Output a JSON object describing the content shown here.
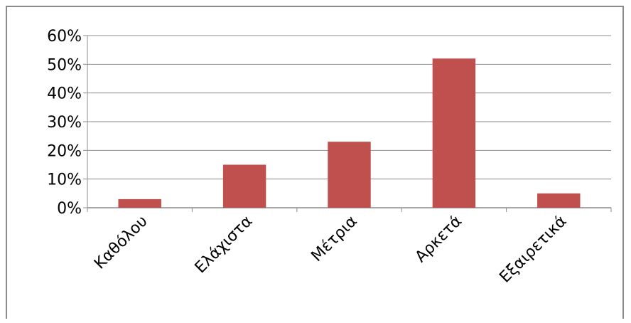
{
  "chart_data": {
    "type": "bar",
    "title": "",
    "xlabel": "",
    "ylabel": "",
    "categories": [
      "Καθόλου",
      "Ελάχιστα",
      "Μέτρια",
      "Αρκετά",
      "Εξαιρετικά"
    ],
    "values": [
      0.03,
      0.15,
      0.23,
      0.52,
      0.05
    ],
    "ylim": [
      0,
      0.6
    ],
    "yticks": [
      0,
      0.1,
      0.2,
      0.3,
      0.4,
      0.5,
      0.6
    ],
    "ytick_labels": [
      "0%",
      "10%",
      "20%",
      "30%",
      "40%",
      "50%",
      "60%"
    ],
    "grid": true,
    "legend": "none",
    "bar_color": "#C0504D",
    "grid_color": "#8c8c8c"
  }
}
